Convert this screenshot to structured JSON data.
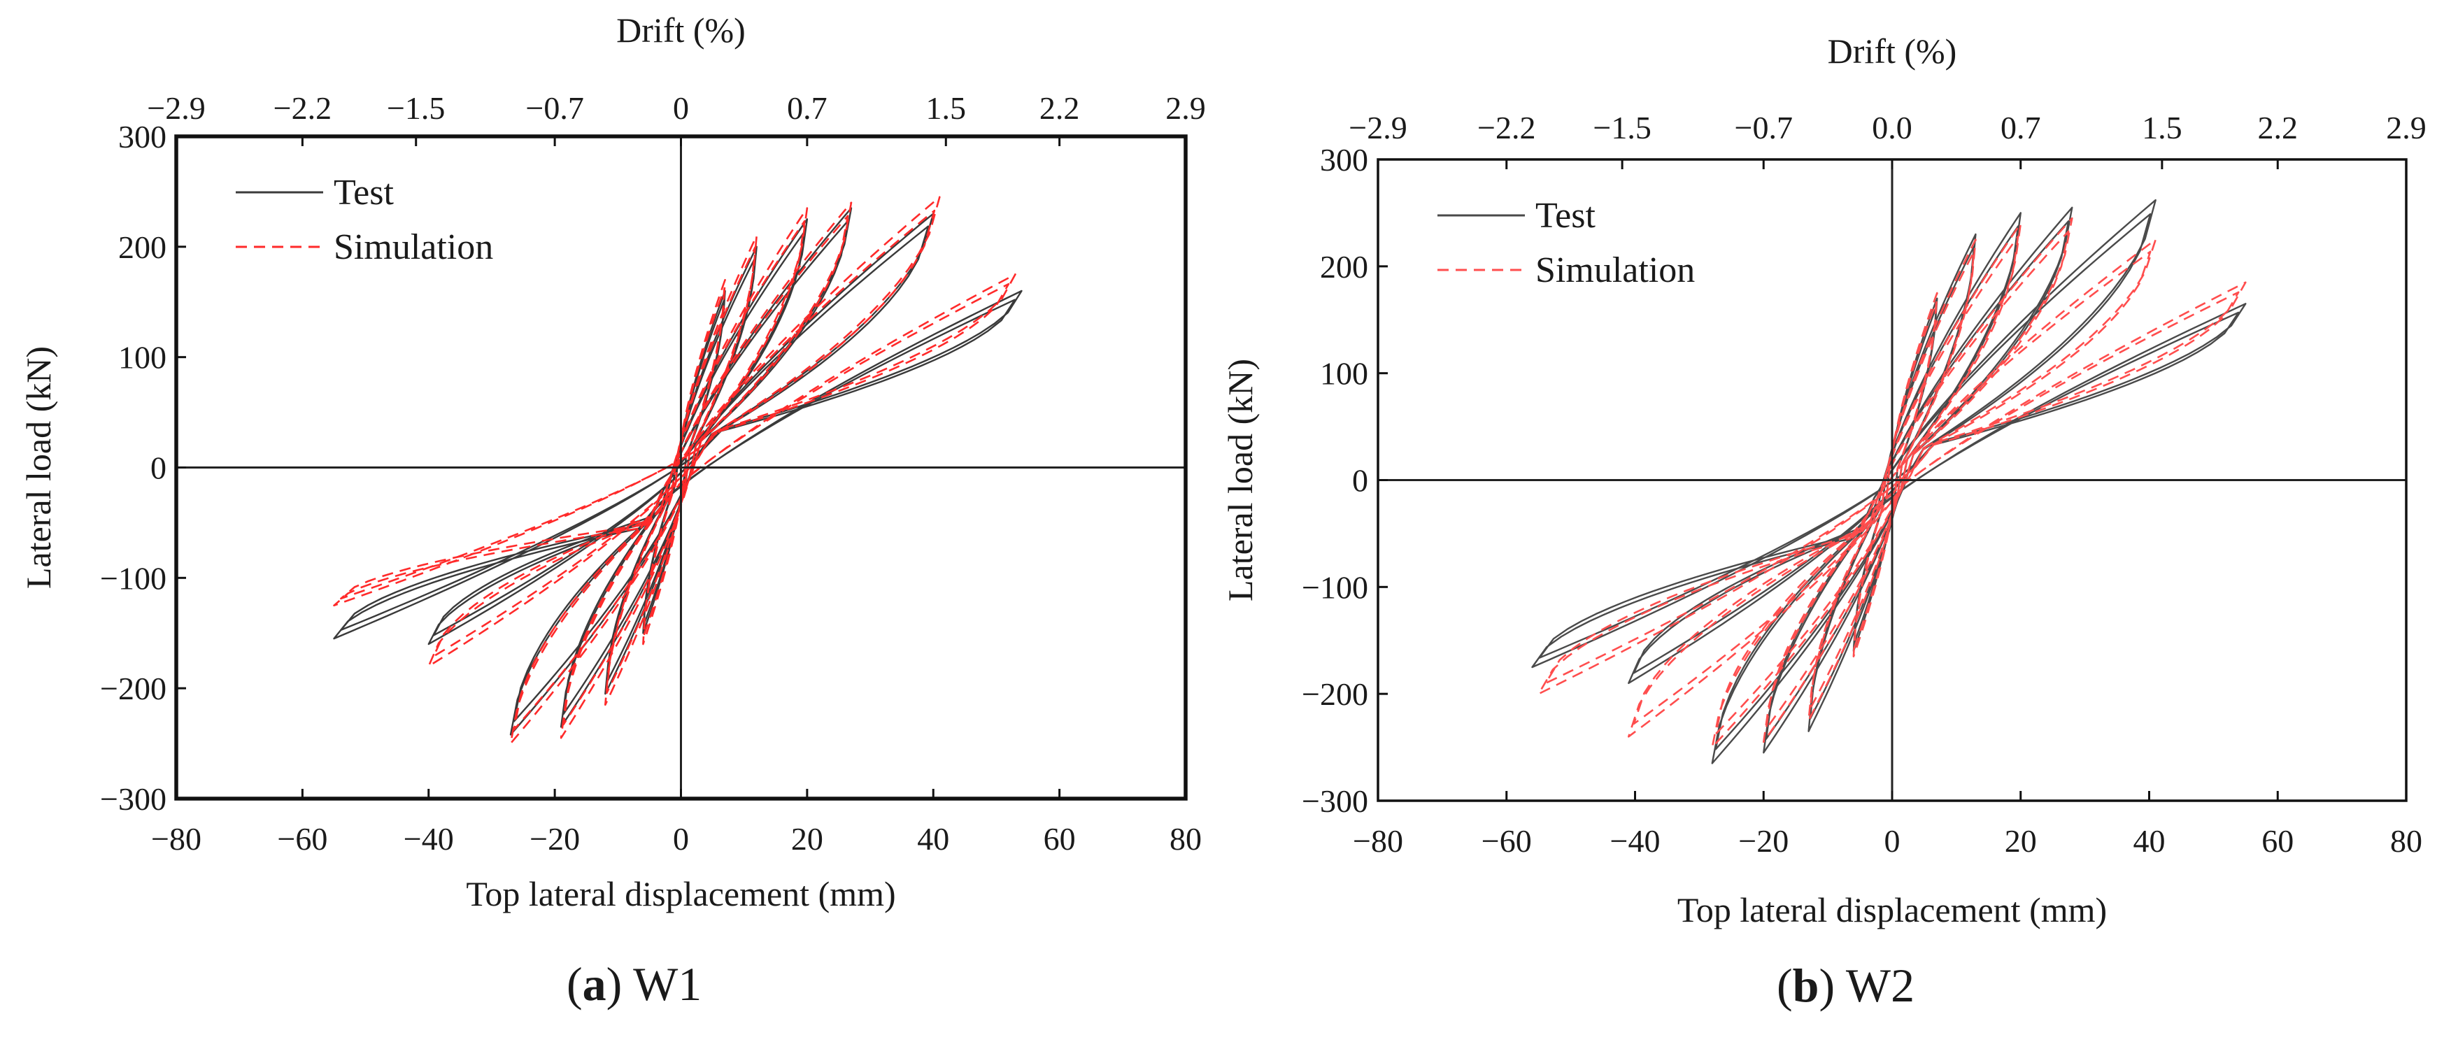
{
  "chart_data": [
    {
      "id": "a",
      "type": "line",
      "title": "",
      "caption_letter": "a",
      "caption_name": "W1",
      "xlabel": "Top lateral displacement (mm)",
      "ylabel": "Lateral load (kN)",
      "top_label": "Drift (%)",
      "xlim": [
        -80,
        80
      ],
      "ylim": [
        -300,
        300
      ],
      "xticks": [
        -80,
        -60,
        -40,
        -20,
        0,
        20,
        40,
        60,
        80
      ],
      "xtick_labels": [
        "−80",
        "−60",
        "−40",
        "−20",
        "0",
        "20",
        "40",
        "60",
        "80"
      ],
      "yticks": [
        300,
        200,
        100,
        0,
        -100,
        -200,
        -300
      ],
      "ytick_labels": [
        "300",
        "200",
        "100",
        "0",
        "−100",
        "−200",
        "−300"
      ],
      "top_ticks_mm": [
        -80,
        -60,
        -42,
        -20,
        0,
        20,
        42,
        60,
        80
      ],
      "top_tick_labels": [
        "−2.9",
        "−2.2",
        "−1.5",
        "−0.7",
        "0",
        "0.7",
        "1.5",
        "2.2",
        "2.9"
      ],
      "legend": {
        "placement": "top-left",
        "entries": [
          "Test",
          "Simulation"
        ]
      },
      "series": [
        {
          "name": "Test",
          "color": "#3a3a3a",
          "loops": [
            {
              "peak_pos": [
                7,
                160
              ],
              "peak_neg": [
                -6,
                -150
              ]
            },
            {
              "peak_pos": [
                12,
                200
              ],
              "peak_neg": [
                -12,
                -205
              ]
            },
            {
              "peak_pos": [
                20,
                225
              ],
              "peak_neg": [
                -19,
                -235
              ]
            },
            {
              "peak_pos": [
                27,
                235
              ],
              "peak_neg": [
                -27,
                -242
              ]
            },
            {
              "peak_pos": [
                40,
                230
              ],
              "peak_neg": [
                -40,
                -160
              ]
            },
            {
              "peak_pos": [
                54,
                160
              ],
              "peak_neg": [
                -55,
                -155
              ]
            }
          ]
        },
        {
          "name": "Simulation",
          "color": "#ff2a2a",
          "loops": [
            {
              "peak_pos": [
                7,
                170
              ],
              "peak_neg": [
                -6,
                -160
              ]
            },
            {
              "peak_pos": [
                12,
                210
              ],
              "peak_neg": [
                -12,
                -215
              ]
            },
            {
              "peak_pos": [
                20,
                235
              ],
              "peak_neg": [
                -19,
                -245
              ]
            },
            {
              "peak_pos": [
                27,
                240
              ],
              "peak_neg": [
                -27,
                -250
              ]
            },
            {
              "peak_pos": [
                41,
                245
              ],
              "peak_neg": [
                -40,
                -180
              ]
            },
            {
              "peak_pos": [
                53,
                175
              ],
              "peak_neg": [
                -55,
                -125
              ]
            }
          ]
        }
      ]
    },
    {
      "id": "b",
      "type": "line",
      "title": "",
      "caption_letter": "b",
      "caption_name": "W2",
      "xlabel": "Top lateral displacement (mm)",
      "ylabel": "Lateral load (kN)",
      "top_label": "Drift (%)",
      "xlim": [
        -80,
        80
      ],
      "ylim": [
        -300,
        300
      ],
      "xticks": [
        -80,
        -60,
        -40,
        -20,
        0,
        20,
        40,
        60,
        80
      ],
      "xtick_labels": [
        "−80",
        "−60",
        "−40",
        "−20",
        "0",
        "20",
        "40",
        "60",
        "80"
      ],
      "yticks": [
        300,
        200,
        100,
        0,
        -100,
        -200,
        -300
      ],
      "ytick_labels": [
        "300",
        "200",
        "100",
        "0",
        "−100",
        "−200",
        "−300"
      ],
      "top_ticks_mm": [
        -80,
        -60,
        -42,
        -20,
        0,
        20,
        42,
        60,
        80
      ],
      "top_tick_labels": [
        "−2.9",
        "−2.2",
        "−1.5",
        "−0.7",
        "0.0",
        "0.7",
        "1.5",
        "2.2",
        "2.9"
      ],
      "legend": {
        "placement": "top-left",
        "entries": [
          "Test",
          "Simulation"
        ]
      },
      "series": [
        {
          "name": "Test",
          "color": "#4a4a4a",
          "loops": [
            {
              "peak_pos": [
                7,
                170
              ],
              "peak_neg": [
                -6,
                -160
              ]
            },
            {
              "peak_pos": [
                13,
                230
              ],
              "peak_neg": [
                -13,
                -235
              ]
            },
            {
              "peak_pos": [
                20,
                250
              ],
              "peak_neg": [
                -20,
                -255
              ]
            },
            {
              "peak_pos": [
                28,
                255
              ],
              "peak_neg": [
                -28,
                -265
              ]
            },
            {
              "peak_pos": [
                41,
                262
              ],
              "peak_neg": [
                -41,
                -190
              ]
            },
            {
              "peak_pos": [
                55,
                165
              ],
              "peak_neg": [
                -56,
                -175
              ]
            }
          ]
        },
        {
          "name": "Simulation",
          "color": "#ff4d4d",
          "loops": [
            {
              "peak_pos": [
                7,
                175
              ],
              "peak_neg": [
                -6,
                -165
              ]
            },
            {
              "peak_pos": [
                13,
                225
              ],
              "peak_neg": [
                -13,
                -225
              ]
            },
            {
              "peak_pos": [
                20,
                240
              ],
              "peak_neg": [
                -20,
                -245
              ]
            },
            {
              "peak_pos": [
                28,
                245
              ],
              "peak_neg": [
                -28,
                -250
              ]
            },
            {
              "peak_pos": [
                41,
                225
              ],
              "peak_neg": [
                -41,
                -240
              ]
            },
            {
              "peak_pos": [
                55,
                185
              ],
              "peak_neg": [
                -55,
                -200
              ]
            }
          ]
        }
      ]
    }
  ]
}
